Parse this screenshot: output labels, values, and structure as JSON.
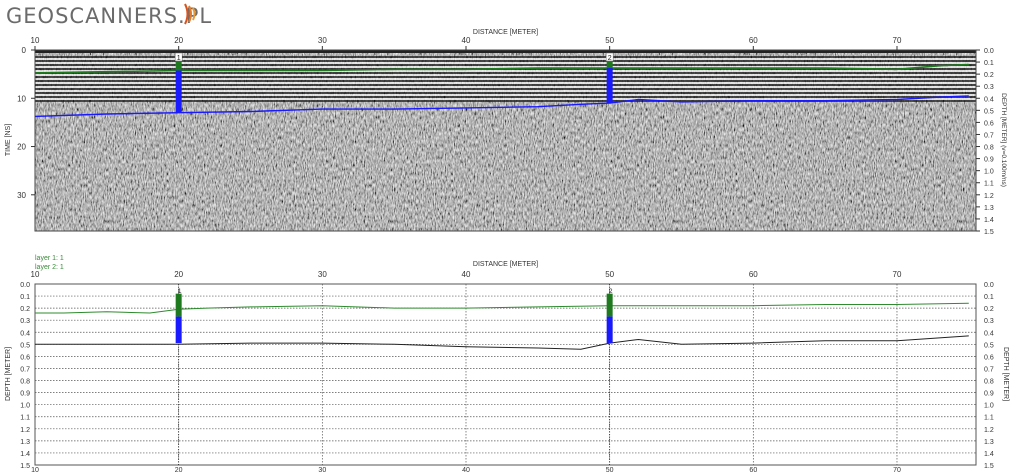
{
  "logo": {
    "main": "GEOSCANNERS",
    "dot": ".",
    "suffix": "PL",
    "accent_color": "#d9531e"
  },
  "radargram": {
    "title": "DISTANCE [METER]",
    "x_ticks": [
      "10",
      "20",
      "30",
      "40",
      "50",
      "60",
      "70"
    ],
    "y_left_label": "TIME [NS]",
    "y_left_ticks": [
      "0",
      "10",
      "20",
      "30"
    ],
    "y_right_label": "DEPTH [METER] (v=0.100m/ns)",
    "y_right_ticks": [
      "0.0",
      "0.1",
      "0.2",
      "0.3",
      "0.4",
      "0.5",
      "0.6",
      "0.7",
      "0.8",
      "0.9",
      "1.0",
      "1.1",
      "1.2",
      "1.3",
      "1.4",
      "1.5"
    ],
    "markers": [
      "1",
      "2"
    ],
    "layer1_color": "#1f7a1f",
    "layer2_color": "#1a1aff"
  },
  "layers": {
    "legend": [
      "layer 1: 1",
      "layer 2: 1"
    ],
    "title": "DISTANCE [METER]",
    "x_ticks": [
      "10",
      "20",
      "30",
      "40",
      "50",
      "60",
      "70"
    ],
    "y_left_label": "DEPTH [METER]",
    "y_right_label": "DEPTH [METER]",
    "y_ticks": [
      "0.0",
      "0.1",
      "0.2",
      "0.3",
      "0.4",
      "0.5",
      "0.6",
      "0.7",
      "0.8",
      "0.9",
      "1.0",
      "1.1",
      "1.2",
      "1.3",
      "1.4",
      "1.5"
    ],
    "markers": [
      "1",
      "2"
    ]
  },
  "chart_data": [
    {
      "type": "line",
      "series": [
        {
          "x": [
            10,
            15,
            20,
            25,
            30,
            35,
            40,
            45,
            48,
            50,
            55,
            60,
            65,
            70,
            73,
            75
          ],
          "values": [
            0.19,
            0.18,
            0.17,
            0.17,
            0.17,
            0.16,
            0.16,
            0.15,
            0.15,
            0.15,
            0.15,
            0.15,
            0.15,
            0.16,
            0.13,
            0.12
          ]
        },
        {
          "x": [
            10,
            15,
            20,
            25,
            30,
            35,
            40,
            45,
            48,
            50,
            52,
            55,
            60,
            65,
            70,
            73,
            75
          ],
          "values": [
            0.55,
            0.53,
            0.52,
            0.51,
            0.49,
            0.49,
            0.48,
            0.47,
            0.45,
            0.44,
            0.41,
            0.43,
            0.42,
            0.42,
            0.41,
            0.39,
            0.38
          ]
        }
      ],
      "markers": [
        {
          "label": "1",
          "x": 20
        },
        {
          "label": "2",
          "x": 50
        }
      ],
      "xlabel": "DISTANCE [METER]",
      "ylabel": "TIME [NS]",
      "xlim": [
        10,
        75.5
      ],
      "ylim": [
        0,
        37.5
      ]
    },
    {
      "type": "line",
      "series": [
        {
          "name": "layer 1",
          "x": [
            10,
            12,
            15,
            18,
            20,
            22,
            25,
            30,
            35,
            40,
            45,
            50,
            55,
            60,
            65,
            70,
            75
          ],
          "values": [
            0.24,
            0.24,
            0.23,
            0.24,
            0.21,
            0.2,
            0.19,
            0.18,
            0.2,
            0.2,
            0.19,
            0.18,
            0.18,
            0.18,
            0.17,
            0.17,
            0.16
          ]
        },
        {
          "name": "layer 2",
          "x": [
            10,
            15,
            20,
            25,
            30,
            35,
            40,
            45,
            48,
            50,
            52,
            55,
            60,
            65,
            70,
            75
          ],
          "values": [
            0.5,
            0.5,
            0.5,
            0.49,
            0.49,
            0.5,
            0.52,
            0.53,
            0.54,
            0.49,
            0.46,
            0.5,
            0.49,
            0.47,
            0.47,
            0.43
          ]
        }
      ],
      "markers": [
        {
          "label": "1",
          "x": 20
        },
        {
          "label": "2",
          "x": 50
        }
      ],
      "xlabel": "DISTANCE [METER]",
      "ylabel": "DEPTH [METER]",
      "xlim": [
        10,
        75.5
      ],
      "ylim": [
        0,
        1.5
      ]
    }
  ]
}
